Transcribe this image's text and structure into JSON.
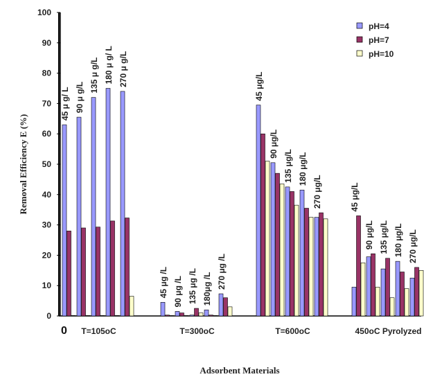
{
  "chart_data": {
    "type": "bar",
    "ylabel": "Removal Efficiency E (%)",
    "xlabel": "Adsorbent Materials",
    "origin_label": "0",
    "ylim": [
      0,
      100
    ],
    "yticks": [
      0,
      10,
      20,
      30,
      40,
      50,
      60,
      70,
      80,
      90,
      100
    ],
    "grid": false,
    "legend_position": "top-right",
    "series_colors": [
      "#9999ff",
      "#993366",
      "#ffffcc"
    ],
    "groups": [
      {
        "label": "T=105oC",
        "concentrations": [
          "45 μ g/ L",
          "90 μ g/L",
          "135 μ g/L",
          "180 μ g/ L",
          "270 μ g/L"
        ],
        "values": [
          [
            63,
            28,
            0
          ],
          [
            65.5,
            29,
            0
          ],
          [
            72,
            29.3,
            0
          ],
          [
            75,
            31.3,
            0
          ],
          [
            74,
            32.3,
            6.5
          ]
        ]
      },
      {
        "label": "T=300oC",
        "concentrations": [
          "45 μg /L",
          "90 μg /L",
          "135 μg /L",
          "180μg /L",
          "270 μg /L"
        ],
        "values": [
          [
            4.5,
            0.3,
            0
          ],
          [
            1.5,
            1,
            0
          ],
          [
            0.3,
            2.5,
            1
          ],
          [
            2,
            0.3,
            0
          ],
          [
            7.3,
            6,
            3
          ]
        ]
      },
      {
        "label": "T=600oC",
        "concentrations": [
          "45 μg/L",
          "90 μg/L",
          "135 μg/L",
          "180 μg/L",
          "270 μg/L"
        ],
        "values": [
          [
            69.5,
            60,
            51
          ],
          [
            50.5,
            47,
            43.5
          ],
          [
            42.5,
            41,
            36.5
          ],
          [
            41.5,
            35.5,
            32.5
          ],
          [
            32.5,
            34,
            32
          ]
        ]
      },
      {
        "label": "450oC Pyrolyzed",
        "concentrations": [
          "45 μg/L",
          "90 μg/L",
          "135 μg/L",
          "180 μg/L",
          "270 μg/L"
        ],
        "values": [
          [
            9.5,
            33,
            17.5
          ],
          [
            19.5,
            20.5,
            9.5
          ],
          [
            15.5,
            19,
            6
          ],
          [
            18,
            14.5,
            9
          ],
          [
            12.5,
            16,
            15
          ]
        ]
      }
    ],
    "series": [
      {
        "name": "pH=4"
      },
      {
        "name": "pH=7"
      },
      {
        "name": "pH=10"
      }
    ]
  }
}
